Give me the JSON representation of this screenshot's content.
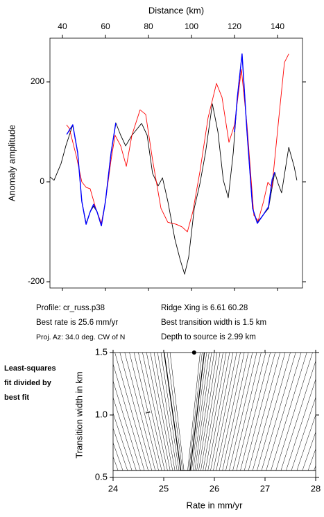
{
  "chart_data": [
    {
      "type": "line",
      "xlabel": "Distance (km)",
      "ylabel": "Anomaly amplitude",
      "xlim": [
        34.2,
        151.6
      ],
      "xticks": [
        40,
        60,
        80,
        100,
        120,
        140
      ],
      "ylim": [
        -212.5,
        287.5
      ],
      "yticks": [
        -200,
        0,
        200
      ],
      "series": [
        {
          "color": "#000000",
          "x": [
            34.2,
            36.1,
            39.4,
            41.6,
            44.8,
            47.1,
            49.0,
            51.0,
            52.9,
            54.5,
            56.1,
            58.1,
            60.0,
            62.6,
            64.8,
            67.1,
            69.4,
            72.3,
            76.8,
            79.4,
            81.9,
            84.5,
            86.5,
            89.0,
            92.3,
            94.8,
            96.8,
            98.7,
            101.3,
            103.9,
            106.5,
            109.7,
            112.3,
            114.8,
            117.1,
            119.4,
            121.3,
            123.5,
            125.8,
            128.4,
            130.6,
            133.2,
            135.8,
            138.7,
            140.3,
            141.9,
            145.2,
            147.7,
            149.0
          ],
          "values": [
            10,
            3,
            37,
            72,
            114,
            58,
            -39,
            -83,
            -60,
            -49,
            -60,
            -88,
            -39,
            58,
            118,
            93,
            72,
            93,
            117,
            93,
            17,
            -8,
            8,
            -39,
            -115,
            -157,
            -185,
            -150,
            -53,
            -4,
            58,
            156,
            100,
            3,
            -32,
            58,
            169,
            256,
            100,
            -53,
            -81,
            -67,
            -53,
            19,
            -4,
            -22,
            69,
            31,
            3
          ]
        },
        {
          "color": "#ff0000",
          "x": [
            41.9,
            43.2,
            46.5,
            49.0,
            51.0,
            52.9,
            55.5,
            58.1,
            60.0,
            62.6,
            64.5,
            67.1,
            69.7,
            72.3,
            76.1,
            78.7,
            81.9,
            85.8,
            89.0,
            92.9,
            95.5,
            98.1,
            100.6,
            103.9,
            107.7,
            111.6,
            114.2,
            117.4,
            120.0,
            123.2,
            125.8,
            129.0,
            131.0,
            133.5,
            135.5,
            137.4,
            140.6,
            143.2,
            145.2
          ],
          "values": [
            114,
            107,
            51,
            0,
            -11,
            -14,
            -53,
            -83,
            -39,
            44,
            93,
            72,
            31,
            93,
            144,
            135,
            44,
            -53,
            -81,
            -85,
            -90,
            -100,
            -60,
            20,
            128,
            197,
            169,
            79,
            114,
            225,
            114,
            -67,
            -78,
            -39,
            -1,
            -11,
            128,
            239,
            256
          ]
        },
        {
          "color": "#0000ff",
          "x": [
            42.0,
            44.8,
            47.1,
            49.0,
            51.0,
            52.9,
            54.5,
            56.1,
            58.1,
            60.0,
            62.6,
            64.8,
            90,
            120.0,
            121.3,
            123.5,
            125.8,
            128.4,
            130.6,
            133.2,
            135.8,
            137.5,
            138.7
          ],
          "values": [
            95,
            114,
            58,
            -39,
            -85,
            -60,
            -45,
            -60,
            -88,
            -39,
            58,
            118,
            null,
            100,
            169,
            256,
            100,
            -53,
            -83,
            -67,
            -50,
            5,
            19
          ]
        }
      ]
    },
    {
      "type": "contour",
      "xlabel": "Rate in mm/yr",
      "ylabel": "Transition width in km",
      "xlim": [
        24,
        28
      ],
      "xticks": [
        24,
        25,
        26,
        27,
        28
      ],
      "ylim": [
        0.5,
        1.5
      ],
      "yticks": [
        0.5,
        {
          "value": 1,
          "label": "1.0"
        },
        1.5
      ],
      "best_fit": {
        "x": 25.6,
        "y": 1.5
      },
      "contour_label": "1"
    }
  ],
  "info": {
    "profile": "Profile: cr_russ.p38",
    "rate": "Best rate is 25.6 mm/yr",
    "azimuth": "Proj. Az: 34.0 deg. CW of N",
    "ridge": "Ridge Xing is 6.61  60.28",
    "width": "Best transition width is 1.5 km",
    "depth": "Depth to source is   2.99 km"
  },
  "side_label": [
    "Least-squares",
    "fit divided by",
    "best fit"
  ]
}
